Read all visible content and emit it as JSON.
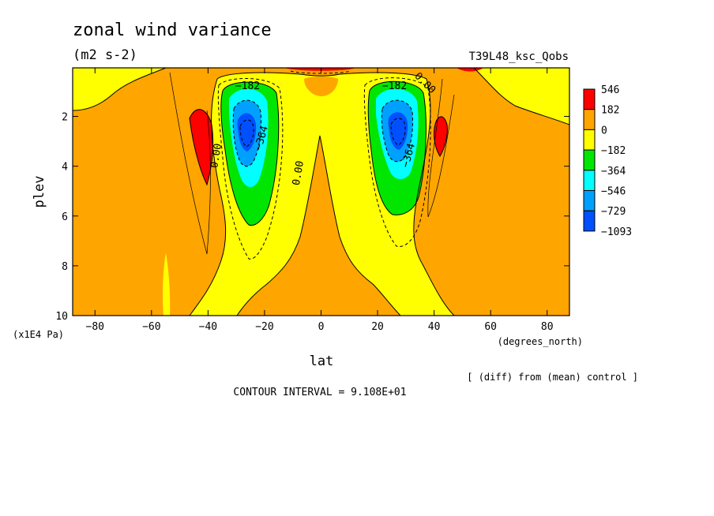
{
  "chart_data": {
    "type": "heatmap",
    "title": "zonal wind variance",
    "units": "(m2 s-2)",
    "run_label": "T39L48_ksc_Qobs",
    "xlabel": "lat",
    "xunits": "(degrees_north)",
    "ylabel": "plev",
    "yunits": "(x1E4 Pa)",
    "xlim": [
      -87.9,
      87.9
    ],
    "ylim": [
      10,
      0.05
    ],
    "xticks": [
      -80,
      -60,
      -40,
      -20,
      0,
      20,
      40,
      60,
      80
    ],
    "yticks": [
      2,
      4,
      6,
      8,
      10
    ],
    "xtick_labels": [
      "−80",
      "−60",
      "−40",
      "−20",
      "0",
      "20",
      "40",
      "60",
      "80"
    ],
    "ytick_labels": [
      "2",
      "4",
      "6",
      "8",
      "10"
    ],
    "legend": {
      "position": "right",
      "levels": [
        546,
        182,
        0,
        -182,
        -364,
        -546,
        -729,
        -1093
      ],
      "labels": [
        "546",
        "182",
        "0",
        "−182",
        "−364",
        "−546",
        "−729",
        "−1093"
      ],
      "colors": [
        "#ff0000",
        "#ffa500",
        "#ffff00",
        "#00e600",
        "#00ffff",
        "#00a0ff",
        "#0050ff"
      ]
    },
    "contour_labels": [
      {
        "text": "−182",
        "lat": -26,
        "plev": 0.9
      },
      {
        "text": "−182",
        "lat": 26,
        "plev": 0.9
      },
      {
        "text": "0.00",
        "lat": 36,
        "plev": 0.75
      },
      {
        "text": "0.00",
        "lat": -7,
        "plev": 4.3
      },
      {
        "text": "0.00",
        "lat": -36,
        "plev": 3.6
      },
      {
        "text": "−364",
        "lat": -20,
        "plev": 2.9
      },
      {
        "text": "−364",
        "lat": 32,
        "plev": 3.6
      }
    ],
    "field_features": {
      "orange_background": 91,
      "sh_jet_core": {
        "lat": -28,
        "plev": 2.6,
        "min": -1093
      },
      "nh_jet_core": {
        "lat": 28,
        "plev": 2.6,
        "min": -1093
      },
      "sh_positive_lobe": {
        "lat": -43,
        "plev": 3.3,
        "max": 546
      },
      "nh_positive_lobe": {
        "lat": 43,
        "plev": 2.7,
        "max": 546
      }
    },
    "grid": false,
    "footer_note": "[ (diff) from (mean) control ]",
    "contour_interval": "CONTOUR INTERVAL = 9.108E+01"
  }
}
